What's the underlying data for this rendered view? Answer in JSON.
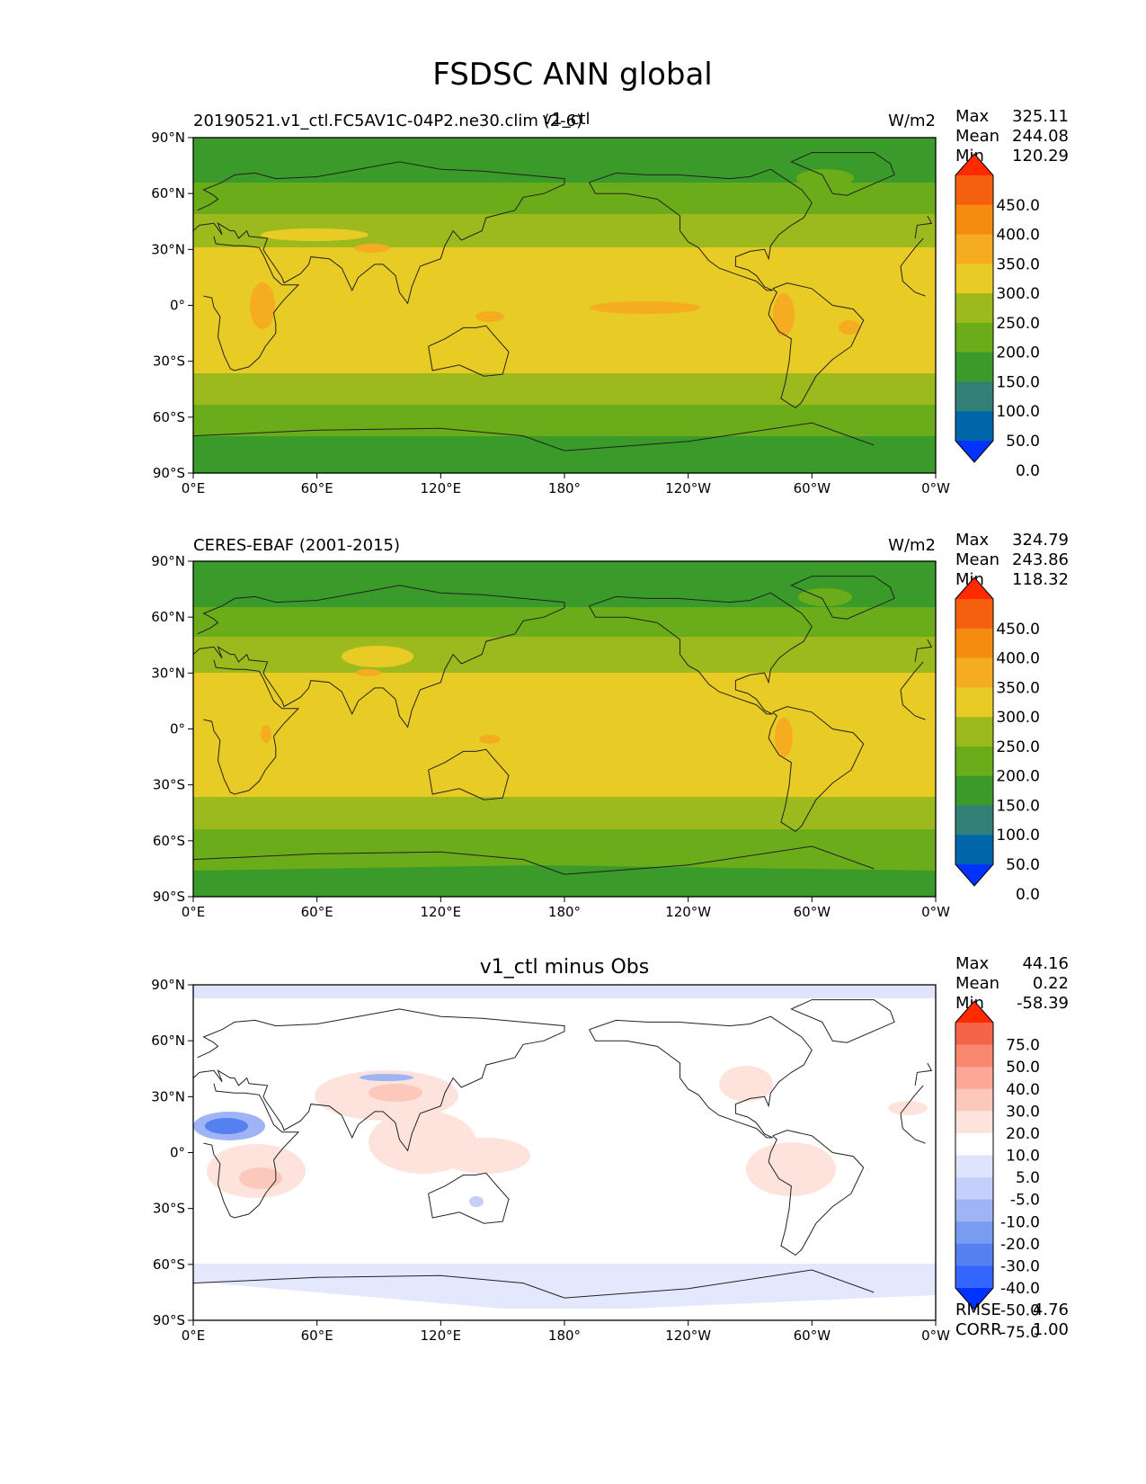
{
  "title": "FSDSC ANN global",
  "colors": {
    "field_bands": [
      "#0033ff",
      "#0066aa",
      "#338077",
      "#3a9a2a",
      "#6aac1a",
      "#9cba1e",
      "#e8cc25",
      "#f5ac20",
      "#f58c10",
      "#f56010",
      "#ff2a00"
    ],
    "diff_bands": [
      "#0033ff",
      "#3366ff",
      "#5580f0",
      "#7a9cf0",
      "#9fb4f5",
      "#c4d0fa",
      "#dee4fc",
      "#ffffff",
      "#fde3dc",
      "#fcc8bc",
      "#fca898",
      "#fa8870",
      "#f56448",
      "#ff2a00"
    ],
    "coast": "#222222"
  },
  "axes": {
    "lat_ticks": [
      "90°N",
      "60°N",
      "30°N",
      "0°",
      "30°S",
      "60°S",
      "90°S"
    ],
    "lon_ticks": [
      "0°E",
      "60°E",
      "120°E",
      "180°",
      "120°W",
      "60°W",
      "0°W"
    ]
  },
  "panels": [
    {
      "left_title": "20190521.v1_ctl.FC5AV1C-04P2.ne30.clim (2-6)",
      "center_title": "v1_ctl",
      "units": "W/m2",
      "stats": [
        {
          "label": "Max",
          "value": "325.11"
        },
        {
          "label": "Mean",
          "value": "244.08"
        },
        {
          "label": "Min",
          "value": "120.29"
        }
      ],
      "colorbar_labels": [
        "450.0",
        "400.0",
        "350.0",
        "300.0",
        "250.0",
        "200.0",
        "150.0",
        "100.0",
        "50.0",
        "0.0"
      ]
    },
    {
      "left_title": "CERES-EBAF (2001-2015)",
      "center_title": "",
      "units": "W/m2",
      "stats": [
        {
          "label": "Max",
          "value": "324.79"
        },
        {
          "label": "Mean",
          "value": "243.86"
        },
        {
          "label": "Min",
          "value": "118.32"
        }
      ],
      "colorbar_labels": [
        "450.0",
        "400.0",
        "350.0",
        "300.0",
        "250.0",
        "200.0",
        "150.0",
        "100.0",
        "50.0",
        "0.0"
      ]
    },
    {
      "left_title": "",
      "center_title": "v1_ctl minus Obs",
      "units": "",
      "stats": [
        {
          "label": "Max",
          "value": "44.16"
        },
        {
          "label": "Mean",
          "value": "0.22"
        },
        {
          "label": "Min",
          "value": "-58.39"
        }
      ],
      "colorbar_labels": [
        "75.0",
        "50.0",
        "40.0",
        "30.0",
        "20.0",
        "10.0",
        "5.0",
        "-5.0",
        "-10.0",
        "-20.0",
        "-30.0",
        "-40.0",
        "-50.0",
        "-75.0"
      ],
      "extra_stats": [
        {
          "label": "RMSE",
          "value": "4.76"
        },
        {
          "label": "CORR",
          "value": "1.00"
        }
      ]
    }
  ]
}
